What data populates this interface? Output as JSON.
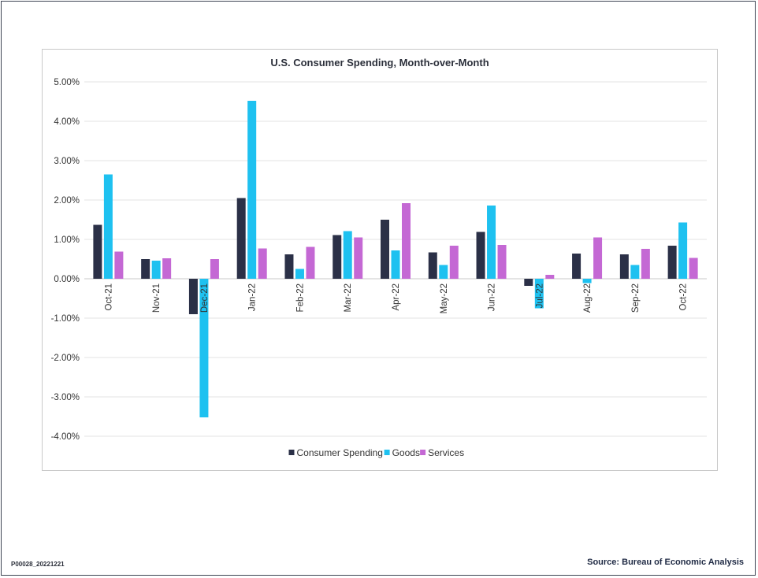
{
  "chart_data": {
    "type": "bar",
    "title": "U.S. Consumer Spending, Month-over-Month",
    "categories": [
      "Oct-21",
      "Nov-21",
      "Dec-21",
      "Jan-22",
      "Feb-22",
      "Mar-22",
      "Apr-22",
      "May-22",
      "Jun-22",
      "Jul-22",
      "Aug-22",
      "Sep-22",
      "Oct-22"
    ],
    "series": [
      {
        "name": "Consumer Spending",
        "color": "#2b3047",
        "values": [
          1.37,
          0.5,
          -0.9,
          2.05,
          0.62,
          1.11,
          1.5,
          0.67,
          1.19,
          -0.18,
          0.64,
          0.62,
          0.84
        ]
      },
      {
        "name": "Goods",
        "color": "#1ec1f0",
        "values": [
          2.65,
          0.46,
          -3.52,
          4.52,
          0.25,
          1.21,
          0.72,
          0.35,
          1.86,
          -0.75,
          -0.11,
          0.35,
          1.43
        ]
      },
      {
        "name": "Services",
        "color": "#c468d4",
        "values": [
          0.69,
          0.52,
          0.5,
          0.77,
          0.81,
          1.05,
          1.92,
          0.84,
          0.86,
          0.1,
          1.05,
          0.76,
          0.53
        ]
      }
    ],
    "ylim": [
      -4,
      5
    ],
    "yticks": [
      "5.00%",
      "4.00%",
      "3.00%",
      "2.00%",
      "1.00%",
      "0.00%",
      "-1.00%",
      "-2.00%",
      "-3.00%",
      "-4.00%"
    ],
    "ytick_values": [
      5,
      4,
      3,
      2,
      1,
      0,
      -1,
      -2,
      -3,
      -4
    ],
    "grid": true,
    "legend_position": "bottom"
  },
  "footer": {
    "code": "P00028_20221221",
    "source": "Source: Bureau of Economic Analysis"
  }
}
